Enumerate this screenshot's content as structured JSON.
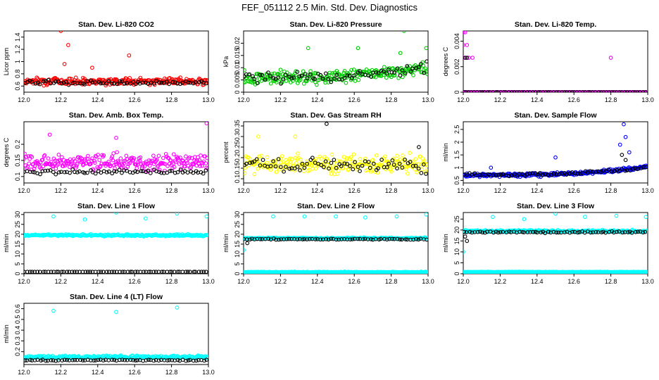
{
  "figure": {
    "title": "FEF_051112  2.5 Min. Std. Dev. Diagnostics"
  },
  "chart_data": [
    {
      "type": "scatter",
      "title": "Stan. Dev. Li-820 CO2",
      "xlabel": "",
      "ylabel": "Licor ppm",
      "xlim": [
        12.0,
        13.0
      ],
      "ylim": [
        0.5,
        1.5
      ],
      "xticks": [
        12.0,
        12.2,
        12.4,
        12.6,
        12.8,
        13.0
      ],
      "yticks": [
        0.6,
        0.8,
        1.0,
        1.2,
        1.4
      ],
      "series": [
        {
          "color": "#ff0000",
          "base": 0.68,
          "spread": 0.08,
          "outliers": [
            [
              12.2,
              1.5
            ],
            [
              12.24,
              1.27
            ],
            [
              12.57,
              1.1
            ],
            [
              12.22,
              0.96
            ],
            [
              12.37,
              0.9
            ]
          ]
        },
        {
          "color": "#000000",
          "base": 0.66,
          "spread": 0.05,
          "outliers": []
        }
      ]
    },
    {
      "type": "scatter",
      "title": "Stan. Dev. Li-820 Pressure",
      "xlabel": "",
      "ylabel": "kPa",
      "xlim": [
        12.0,
        13.0
      ],
      "ylim": [
        0.0,
        0.025
      ],
      "xticks": [
        12.0,
        12.2,
        12.4,
        12.6,
        12.8,
        13.0
      ],
      "yticks": [
        0.0,
        0.005,
        0.01,
        0.015,
        0.02
      ],
      "series": [
        {
          "color": "#00cc00",
          "base": 0.006,
          "spread": 0.004,
          "trend": 0.004,
          "outliers": [
            [
              12.87,
              0.025
            ],
            [
              12.35,
              0.018
            ],
            [
              12.85,
              0.016
            ],
            [
              12.62,
              0.018
            ],
            [
              12.99,
              0.018
            ]
          ]
        },
        {
          "color": "#000000",
          "base": 0.006,
          "spread": 0.003,
          "trend": 0.004,
          "outliers": []
        }
      ]
    },
    {
      "type": "scatter",
      "title": "Stan. Dev. Li-820 Temp.",
      "xlabel": "",
      "ylabel": "degrees C",
      "xlim": [
        12.0,
        13.0
      ],
      "ylim": [
        0.0,
        0.0048
      ],
      "xticks": [
        12.0,
        12.2,
        12.4,
        12.6,
        12.8,
        13.0
      ],
      "yticks": [
        0.0,
        0.002,
        0.004
      ],
      "series": [
        {
          "color": "#ff00ff",
          "base": 0.0,
          "spread": 0.0,
          "outliers": [
            [
              12.0,
              0.0047
            ],
            [
              12.01,
              0.0047
            ],
            [
              12.0,
              0.0037
            ],
            [
              12.02,
              0.0037
            ],
            [
              12.0,
              0.0027
            ],
            [
              12.03,
              0.0027
            ],
            [
              12.05,
              0.0027
            ],
            [
              12.8,
              0.0027
            ]
          ]
        },
        {
          "color": "#000000",
          "base": 0.0,
          "spread": 0.0,
          "outliers": [
            [
              12.01,
              0.0027
            ],
            [
              12.02,
              0.0027
            ]
          ]
        }
      ]
    },
    {
      "type": "scatter",
      "title": "Stan. Dev. Amb. Box Temp.",
      "xlabel": "",
      "ylabel": "degrees C",
      "xlim": [
        12.0,
        13.0
      ],
      "ylim": [
        0.08,
        0.27
      ],
      "xticks": [
        12.0,
        12.2,
        12.4,
        12.6,
        12.8,
        13.0
      ],
      "yticks": [
        0.1,
        0.15,
        0.2
      ],
      "series": [
        {
          "color": "#ff00ff",
          "base": 0.145,
          "spread": 0.035,
          "outliers": [
            [
              12.99,
              0.265
            ],
            [
              12.14,
              0.23
            ],
            [
              12.5,
              0.22
            ]
          ]
        },
        {
          "color": "#000000",
          "base": 0.115,
          "spread": 0.012,
          "outliers": []
        }
      ]
    },
    {
      "type": "scatter",
      "title": "Stan. Dev. Gas Stream RH",
      "xlabel": "",
      "ylabel": "percent",
      "xlim": [
        12.0,
        13.0
      ],
      "ylim": [
        0.08,
        0.37
      ],
      "xticks": [
        12.0,
        12.2,
        12.4,
        12.6,
        12.8,
        13.0
      ],
      "yticks": [
        0.1,
        0.15,
        0.2,
        0.25,
        0.3,
        0.35
      ],
      "series": [
        {
          "color": "#ffff00",
          "base": 0.17,
          "spread": 0.06,
          "outliers": [
            [
              12.08,
              0.3
            ],
            [
              12.28,
              0.3
            ]
          ]
        },
        {
          "color": "#000000",
          "base": 0.16,
          "spread": 0.05,
          "outliers": [
            [
              12.45,
              0.36
            ],
            [
              12.95,
              0.25
            ]
          ]
        }
      ]
    },
    {
      "type": "scatter",
      "title": "Stan. Dev. Sample Flow",
      "xlabel": "",
      "ylabel": "ml/min",
      "xlim": [
        12.0,
        13.0
      ],
      "ylim": [
        0.4,
        2.8
      ],
      "xticks": [
        12.0,
        12.2,
        12.4,
        12.6,
        12.8,
        13.0
      ],
      "yticks": [
        0.5,
        1.0,
        1.5,
        2.0,
        2.5
      ],
      "series": [
        {
          "color": "#0000ff",
          "base": 0.7,
          "spread": 0.1,
          "trend": 0.35,
          "outliers": [
            [
              12.87,
              2.7
            ],
            [
              12.88,
              2.2
            ],
            [
              12.85,
              1.9
            ],
            [
              12.9,
              1.6
            ],
            [
              12.5,
              1.4
            ],
            [
              12.15,
              1.0
            ]
          ]
        },
        {
          "color": "#000000",
          "base": 0.72,
          "spread": 0.08,
          "trend": 0.3,
          "outliers": [
            [
              12.86,
              1.5
            ],
            [
              12.88,
              1.3
            ]
          ]
        }
      ]
    },
    {
      "type": "scatter",
      "title": "Stan. Dev. Line 1 Flow",
      "xlabel": "",
      "ylabel": "ml/min",
      "xlim": [
        12.0,
        13.0
      ],
      "ylim": [
        0,
        31
      ],
      "xticks": [
        12.0,
        12.2,
        12.4,
        12.6,
        12.8,
        13.0
      ],
      "yticks": [
        0,
        5,
        10,
        15,
        20,
        25,
        30
      ],
      "series": [
        {
          "color": "#00ffff",
          "base": 19.5,
          "spread": 0.7,
          "outliers": [
            [
              12.16,
              29
            ],
            [
              12.33,
              27.5
            ],
            [
              12.5,
              31
            ],
            [
              12.66,
              28
            ],
            [
              12.83,
              30.5
            ],
            [
              12.99,
              29
            ]
          ]
        },
        {
          "color": "#000000",
          "base": 1.0,
          "spread": 0.0,
          "outliers": []
        }
      ]
    },
    {
      "type": "scatter",
      "title": "Stan. Dev. Line 2 Flow",
      "xlabel": "",
      "ylabel": "ml/min",
      "xlim": [
        12.0,
        13.0
      ],
      "ylim": [
        0,
        31
      ],
      "xticks": [
        12.0,
        12.2,
        12.4,
        12.6,
        12.8,
        13.0
      ],
      "yticks": [
        0,
        5,
        10,
        15,
        20,
        25,
        30
      ],
      "series": [
        {
          "color": "#00ffff",
          "base": 18.0,
          "spread": 0.5,
          "outliers": [
            [
              12.0,
              12
            ],
            [
              12.16,
              29
            ],
            [
              12.33,
              29
            ],
            [
              12.5,
              29
            ],
            [
              12.66,
              28.5
            ],
            [
              12.83,
              29
            ],
            [
              12.99,
              30
            ]
          ]
        },
        {
          "color": "#00ffff",
          "base": 0.8,
          "spread": 0.3,
          "outliers": []
        },
        {
          "color": "#000000",
          "base": 17.5,
          "spread": 0.4,
          "outliers": [
            [
              12.02,
              15.5
            ]
          ]
        }
      ]
    },
    {
      "type": "scatter",
      "title": "Stan. Dev. Line 3 Flow",
      "xlabel": "",
      "ylabel": "ml/min",
      "xlim": [
        12.0,
        13.0
      ],
      "ylim": [
        0,
        28
      ],
      "xticks": [
        12.0,
        12.2,
        12.4,
        12.6,
        12.8,
        13.0
      ],
      "yticks": [
        0,
        5,
        10,
        15,
        20,
        25
      ],
      "series": [
        {
          "color": "#00ffff",
          "base": 19.5,
          "spread": 0.8,
          "outliers": [
            [
              12.0,
              10
            ],
            [
              12.16,
              26
            ],
            [
              12.33,
              25
            ],
            [
              12.5,
              27.5
            ],
            [
              12.66,
              26
            ],
            [
              12.83,
              26.5
            ],
            [
              12.99,
              26
            ]
          ]
        },
        {
          "color": "#00ffff",
          "base": 0.8,
          "spread": 0.2,
          "outliers": []
        },
        {
          "color": "#000000",
          "base": 19.0,
          "spread": 0.5,
          "outliers": [
            [
              12.01,
              17
            ],
            [
              12.02,
              15
            ]
          ]
        }
      ]
    },
    {
      "type": "scatter",
      "title": "Stan. Dev. Line 4 (LT) Flow",
      "xlabel": "",
      "ylabel": "ml/min",
      "xlim": [
        12.0,
        13.0
      ],
      "ylim": [
        0.08,
        0.65
      ],
      "xticks": [
        12.0,
        12.2,
        12.4,
        12.6,
        12.8,
        13.0
      ],
      "yticks": [
        0.2,
        0.3,
        0.4,
        0.5,
        0.6
      ],
      "series": [
        {
          "color": "#00ffff",
          "base": 0.15,
          "spread": 0.02,
          "outliers": [
            [
              12.16,
              0.58
            ],
            [
              12.5,
              0.57
            ],
            [
              12.83,
              0.61
            ]
          ]
        },
        {
          "color": "#000000",
          "base": 0.12,
          "spread": 0.01,
          "outliers": []
        }
      ]
    }
  ]
}
